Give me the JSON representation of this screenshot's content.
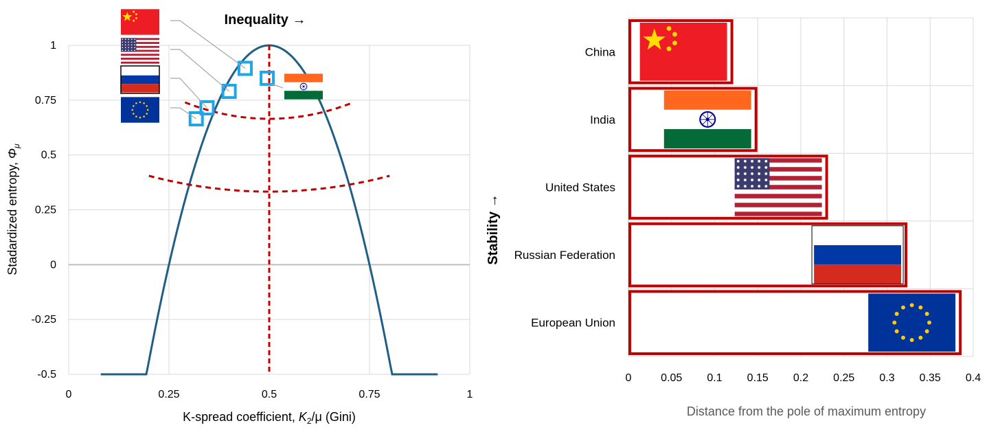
{
  "chart_data": [
    {
      "type": "scatter",
      "title": "Inequality →",
      "xlabel_main": "K-spread coefficient, ",
      "xlabel_var": "K",
      "xlabel_sub": "2",
      "xlabel_rest": "/μ (Gini)",
      "ylabel_main": "Stadardized entropy, ",
      "ylabel_var": "Φ",
      "ylabel_sub": "μ",
      "xlim": [
        0,
        1
      ],
      "ylim": [
        -0.5,
        1
      ],
      "x_ticks": [
        0,
        0.25,
        0.5,
        0.75,
        1
      ],
      "x_tick_labels": [
        "0",
        "0.25",
        "0.5",
        "0.75",
        "1"
      ],
      "y_ticks": [
        -0.5,
        -0.25,
        0,
        0.25,
        0.5,
        0.75,
        1
      ],
      "y_tick_labels": [
        "-0.5",
        "-0.25",
        "0",
        "0.25",
        "0.5",
        "0.75",
        "1"
      ],
      "curve": {
        "name": "Maximum entropy boundary",
        "function": "1 - 16*(x-0.5)^2",
        "color": "#1f5f85"
      },
      "reference_lines": [
        {
          "name": "Vertical axis of symmetry",
          "x": 0.5,
          "color": "#c00000"
        }
      ],
      "contours": [
        {
          "name": "Upper contour",
          "x": [
            0.29,
            0.5,
            0.71
          ],
          "y": [
            0.74,
            0.665,
            0.74
          ],
          "color": "#c00000"
        },
        {
          "name": "Lower contour",
          "x": [
            0.2,
            0.5,
            0.8
          ],
          "y": [
            0.405,
            0.333,
            0.405
          ],
          "color": "#c00000"
        }
      ],
      "points": [
        {
          "name": "China",
          "x": 0.44,
          "y": 0.895,
          "flag": "china-flag"
        },
        {
          "name": "India",
          "x": 0.495,
          "y": 0.85,
          "flag": "india-flag"
        },
        {
          "name": "United States",
          "x": 0.4,
          "y": 0.79,
          "flag": "usa-flag"
        },
        {
          "name": "Russian Federation",
          "x": 0.345,
          "y": 0.715,
          "flag": "russia-flag"
        },
        {
          "name": "European Union",
          "x": 0.318,
          "y": 0.665,
          "flag": "eu-flag"
        }
      ],
      "colors": {
        "curve": "#1f5f85",
        "dashed": "#c00000",
        "marker": "#1ea6e6",
        "grid": "#d9d9d9",
        "zero_line": "#bfbfbf"
      }
    },
    {
      "type": "bar",
      "orientation": "horizontal",
      "categories": [
        "China",
        "India",
        "United States",
        "Russian Federation",
        "European Union"
      ],
      "values": [
        0.12,
        0.148,
        0.23,
        0.322,
        0.385
      ],
      "flags": [
        "china-flag",
        "india-flag",
        "usa-flag",
        "russia-flag",
        "eu-flag"
      ],
      "xlabel": "Distance from the pole of maximum entropy",
      "ylabel": "Stability →",
      "xlim": [
        0,
        0.4
      ],
      "x_ticks": [
        0,
        0.05,
        0.1,
        0.15,
        0.2,
        0.25,
        0.3,
        0.35,
        0.4
      ],
      "x_tick_labels": [
        "0",
        "0.05",
        "0.1",
        "0.15",
        "0.2",
        "0.25",
        "0.3",
        "0.35",
        "0.4"
      ],
      "colors": {
        "bar_border": "#c00000",
        "bar_fill": "#ffffff",
        "grid": "#d9d9d9"
      }
    }
  ]
}
